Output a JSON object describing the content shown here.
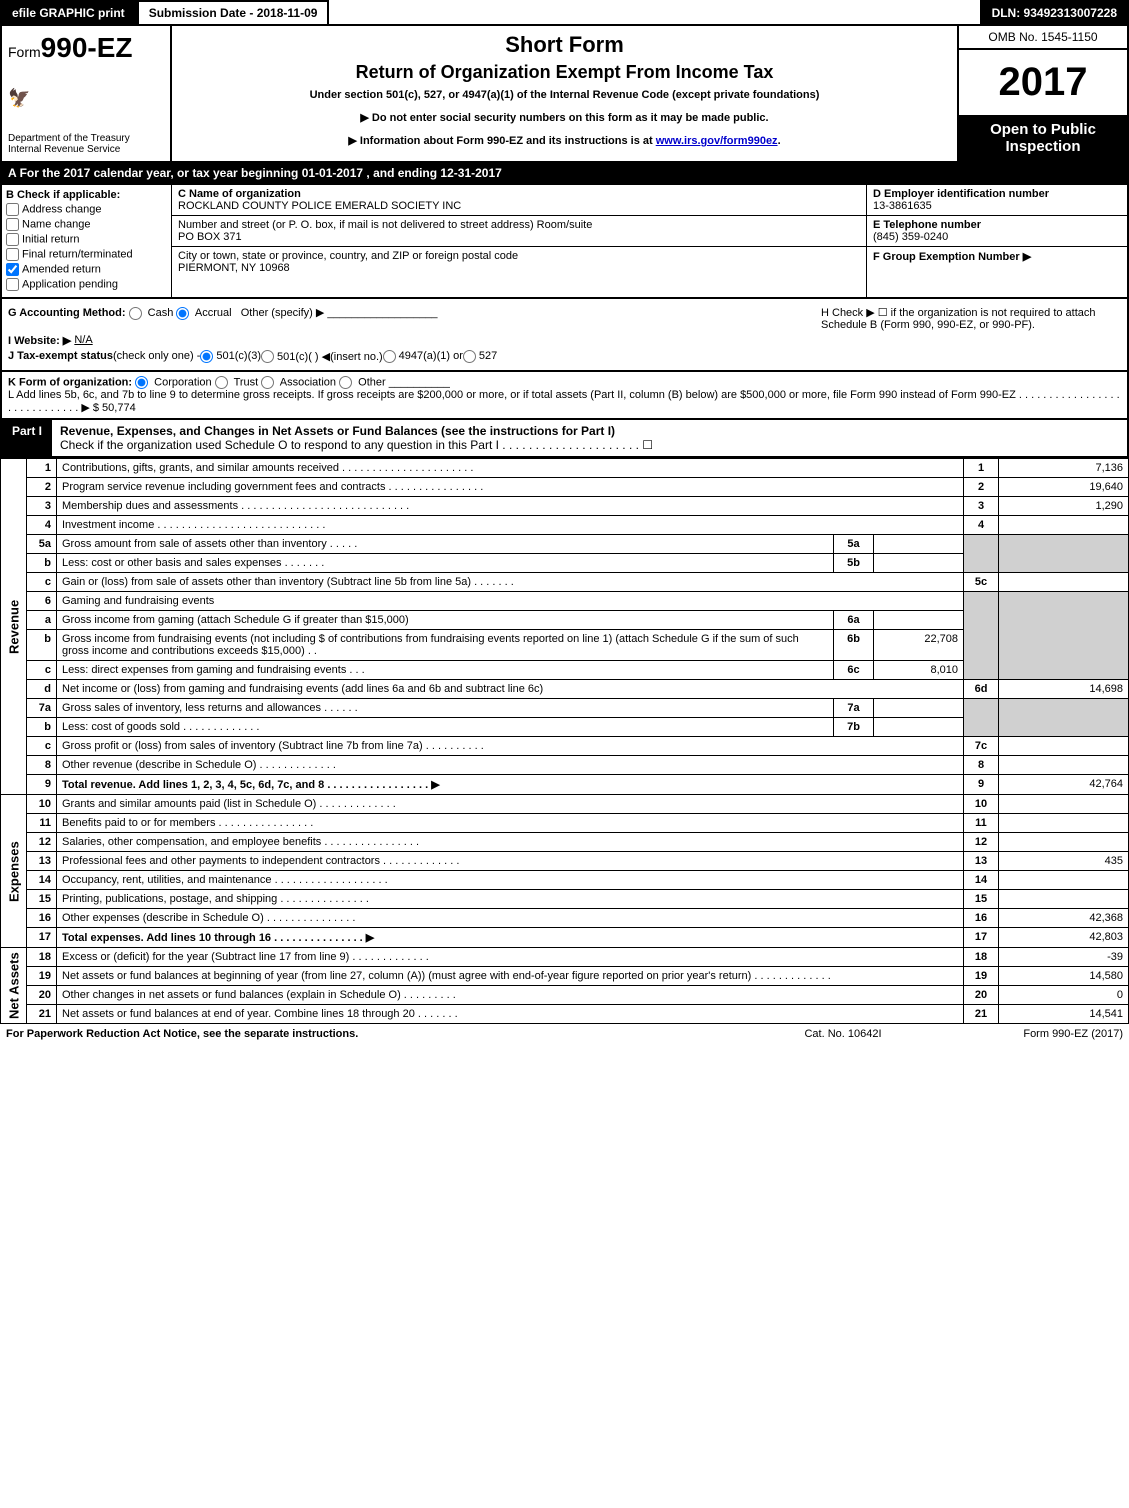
{
  "top": {
    "efile": "efile GRAPHIC print",
    "sub_date": "Submission Date - 2018-11-09",
    "dln": "DLN: 93492313007228"
  },
  "hdr": {
    "form_prefix": "Form",
    "form_no": "990-EZ",
    "dept": "Department of the Treasury\nInternal Revenue Service",
    "title1": "Short Form",
    "title2": "Return of Organization Exempt From Income Tax",
    "sub": "Under section 501(c), 527, or 4947(a)(1) of the Internal Revenue Code (except private foundations)",
    "info1": "▶ Do not enter social security numbers on this form as it may be made public.",
    "info2_pre": "▶ Information about Form 990-EZ and its instructions is at ",
    "info2_link": "www.irs.gov/form990ez",
    "omb": "OMB No. 1545-1150",
    "year": "2017",
    "open": "Open to Public Inspection"
  },
  "A": {
    "text_pre": "For the 2017 calendar year, or tax year beginning ",
    "begin": "01-01-2017",
    "mid": " , and ending ",
    "end": "12-31-2017"
  },
  "B": {
    "hdr": "B  Check if applicable:",
    "opts": [
      "Address change",
      "Name change",
      "Initial return",
      "Final return/terminated",
      "Amended return",
      "Application pending"
    ],
    "checked_idx": 4
  },
  "C": {
    "label": "C Name of organization",
    "org": "ROCKLAND COUNTY POLICE EMERALD SOCIETY INC",
    "addr_label": "Number and street (or P. O. box, if mail is not delivered to street address)    Room/suite",
    "addr": "PO BOX 371",
    "city_label": "City or town, state or province, country, and ZIP or foreign postal code",
    "city": "PIERMONT, NY  10968"
  },
  "D": {
    "label": "D Employer identification number",
    "val": "13-3861635"
  },
  "E": {
    "label": "E Telephone number",
    "val": "(845) 359-0240"
  },
  "F": {
    "label": "F Group Exemption Number  ▶",
    "val": ""
  },
  "G": {
    "label": "G Accounting Method:",
    "opts": [
      "Cash",
      "Accrual"
    ],
    "other": "Other (specify) ▶",
    "checked_idx": 1
  },
  "H": {
    "text": "H  Check ▶  ☐  if the organization is not required to attach Schedule B (Form 990, 990-EZ, or 990-PF)."
  },
  "I": {
    "label": "I Website: ▶",
    "val": "N/A"
  },
  "J": {
    "label": "J Tax-exempt status",
    "note": "(check only one) - ",
    "opts": [
      "501(c)(3)",
      "501(c)(  ) ◀(insert no.)",
      "4947(a)(1) or",
      "527"
    ],
    "checked_idx": 0
  },
  "K": {
    "label": "K Form of organization:",
    "opts": [
      "Corporation",
      "Trust",
      "Association",
      "Other"
    ],
    "checked_idx": 0
  },
  "L": {
    "text": "L Add lines 5b, 6c, and 7b to line 9 to determine gross receipts. If gross receipts are $200,000 or more, or if total assets (Part II, column (B) below) are $500,000 or more, file Form 990 instead of Form 990-EZ  .  .  .  .  .  .  .  .  .  .  .  .  .  .  .  .  .  .  .  .  .  .  .  .  .  .  .  .  .  ▶ $",
    "amt": " 50,774"
  },
  "part1": {
    "tag": "Part I",
    "title": "Revenue, Expenses, and Changes in Net Assets or Fund Balances (see the instructions for Part I)",
    "check": "Check if the organization used Schedule O to respond to any question in this Part I  .  .  .  .  .  .  .  .  .  .  .  .  .  .  .  .  .  .  .  .  . ☐"
  },
  "sections": {
    "revenue": "Revenue",
    "expenses": "Expenses",
    "netassets": "Net Assets"
  },
  "lines": {
    "1": {
      "txt": "Contributions, gifts, grants, and similar amounts received  .  .  .  .  .  .  .  .  .  .  .  .  .  .  .  .  .  .  .  .  .  .",
      "ln": "1",
      "amt": "7,136"
    },
    "2": {
      "txt": "Program service revenue including government fees and contracts  .  .  .  .  .  .  .  .  .  .  .  .  .  .  .  .",
      "ln": "2",
      "amt": "19,640"
    },
    "3": {
      "txt": "Membership dues and assessments  .  .  .  .  .  .  .  .  .  .  .  .  .  .  .  .  .  .  .  .  .  .  .  .  .  .  .  .",
      "ln": "3",
      "amt": "1,290"
    },
    "4": {
      "txt": "Investment income  .  .  .  .  .  .  .  .  .  .  .  .  .  .  .  .  .  .  .  .  .  .  .  .  .  .  .  .",
      "ln": "4",
      "amt": ""
    },
    "5a": {
      "txt": "Gross amount from sale of assets other than inventory  .  .  .  .  .",
      "sub": "5a",
      "subamt": ""
    },
    "5b": {
      "txt": "Less: cost or other basis and sales expenses  .  .  .  .  .  .  .",
      "sub": "5b",
      "subamt": ""
    },
    "5c": {
      "txt": "Gain or (loss) from sale of assets other than inventory (Subtract line 5b from line 5a)  .  .  .  .  .  .  .",
      "ln": "5c",
      "amt": ""
    },
    "6": {
      "txt": "Gaming and fundraising events"
    },
    "6a": {
      "txt": "Gross income from gaming (attach Schedule G if greater than $15,000)",
      "sub": "6a",
      "subamt": ""
    },
    "6b": {
      "txt": "Gross income from fundraising events (not including $                        of contributions from fundraising events reported on line 1) (attach Schedule G if the sum of such gross income and contributions exceeds $15,000)    .   .",
      "sub": "6b",
      "subamt": "22,708"
    },
    "6c": {
      "txt": "Less: direct expenses from gaming and fundraising events               .    .    .",
      "sub": "6c",
      "subamt": "8,010"
    },
    "6d": {
      "txt": "Net income or (loss) from gaming and fundraising events (add lines 6a and 6b and subtract line 6c)",
      "ln": "6d",
      "amt": "14,698"
    },
    "7a": {
      "txt": "Gross sales of inventory, less returns and allowances  .  .  .  .  .  .",
      "sub": "7a",
      "subamt": ""
    },
    "7b": {
      "txt": "Less: cost of goods sold          .    .    .    .    .    .    .    .    .    .    .    .    .",
      "sub": "7b",
      "subamt": ""
    },
    "7c": {
      "txt": "Gross profit or (loss) from sales of inventory (Subtract line 7b from line 7a)  .   .   .   .   .   .   .   .   .   .",
      "ln": "7c",
      "amt": ""
    },
    "8": {
      "txt": "Other revenue (describe in Schedule O)                        .    .    .    .    .    .    .    .    .    .    .    .    .",
      "ln": "8",
      "amt": ""
    },
    "9": {
      "txt": "Total revenue. Add lines 1, 2, 3, 4, 5c, 6d, 7c, and 8   .    .    .    .    .    .    .    .    .    .    .    .    .    .    .    .    .     ▶",
      "ln": "9",
      "amt": "42,764"
    },
    "10": {
      "txt": "Grants and similar amounts paid (list in Schedule O)            .    .    .    .    .    .    .    .    .    .    .    .    .",
      "ln": "10",
      "amt": ""
    },
    "11": {
      "txt": "Benefits paid to or for members                    .    .    .    .    .    .    .    .    .    .    .    .    .    .    .    .",
      "ln": "11",
      "amt": ""
    },
    "12": {
      "txt": "Salaries, other compensation, and employee benefits  .    .    .    .    .    .    .    .    .    .    .    .    .    .    .    .",
      "ln": "12",
      "amt": ""
    },
    "13": {
      "txt": "Professional fees and other payments to independent contractors  .    .    .    .    .    .    .    .    .    .    .    .    .",
      "ln": "13",
      "amt": "435"
    },
    "14": {
      "txt": "Occupancy, rent, utilities, and maintenance  .    .    .    .    .    .    .    .    .    .    .    .    .    .    .    .    .    .    .",
      "ln": "14",
      "amt": ""
    },
    "15": {
      "txt": "Printing, publications, postage, and shipping            .    .    .    .    .    .    .    .    .    .    .    .    .    .    .",
      "ln": "15",
      "amt": ""
    },
    "16": {
      "txt": "Other expenses (describe in Schedule O)                .    .    .    .    .    .    .    .    .    .    .    .    .    .    .",
      "ln": "16",
      "amt": "42,368"
    },
    "17": {
      "txt": "Total expenses. Add lines 10 through 16            .    .    .    .    .    .    .    .    .    .    .    .    .    .    .     ▶",
      "ln": "17",
      "amt": "42,803"
    },
    "18": {
      "txt": "Excess or (deficit) for the year (Subtract line 17 from line 9)        .    .    .    .    .    .    .    .    .    .    .    .    .",
      "ln": "18",
      "amt": "-39"
    },
    "19": {
      "txt": "Net assets or fund balances at beginning of year (from line 27, column (A)) (must agree with end-of-year figure reported on prior year's return)            .    .    .    .    .    .    .    .    .    .    .    .    .",
      "ln": "19",
      "amt": "14,580"
    },
    "20": {
      "txt": "Other changes in net assets or fund balances (explain in Schedule O)    .    .    .    .    .    .    .    .    .",
      "ln": "20",
      "amt": "0"
    },
    "21": {
      "txt": "Net assets or fund balances at end of year. Combine lines 18 through 20            .    .    .    .    .    .    .",
      "ln": "21",
      "amt": "14,541"
    }
  },
  "footer": {
    "l": "For Paperwork Reduction Act Notice, see the separate instructions.",
    "m": "Cat. No. 10642I",
    "r": "Form 990-EZ (2017)"
  }
}
